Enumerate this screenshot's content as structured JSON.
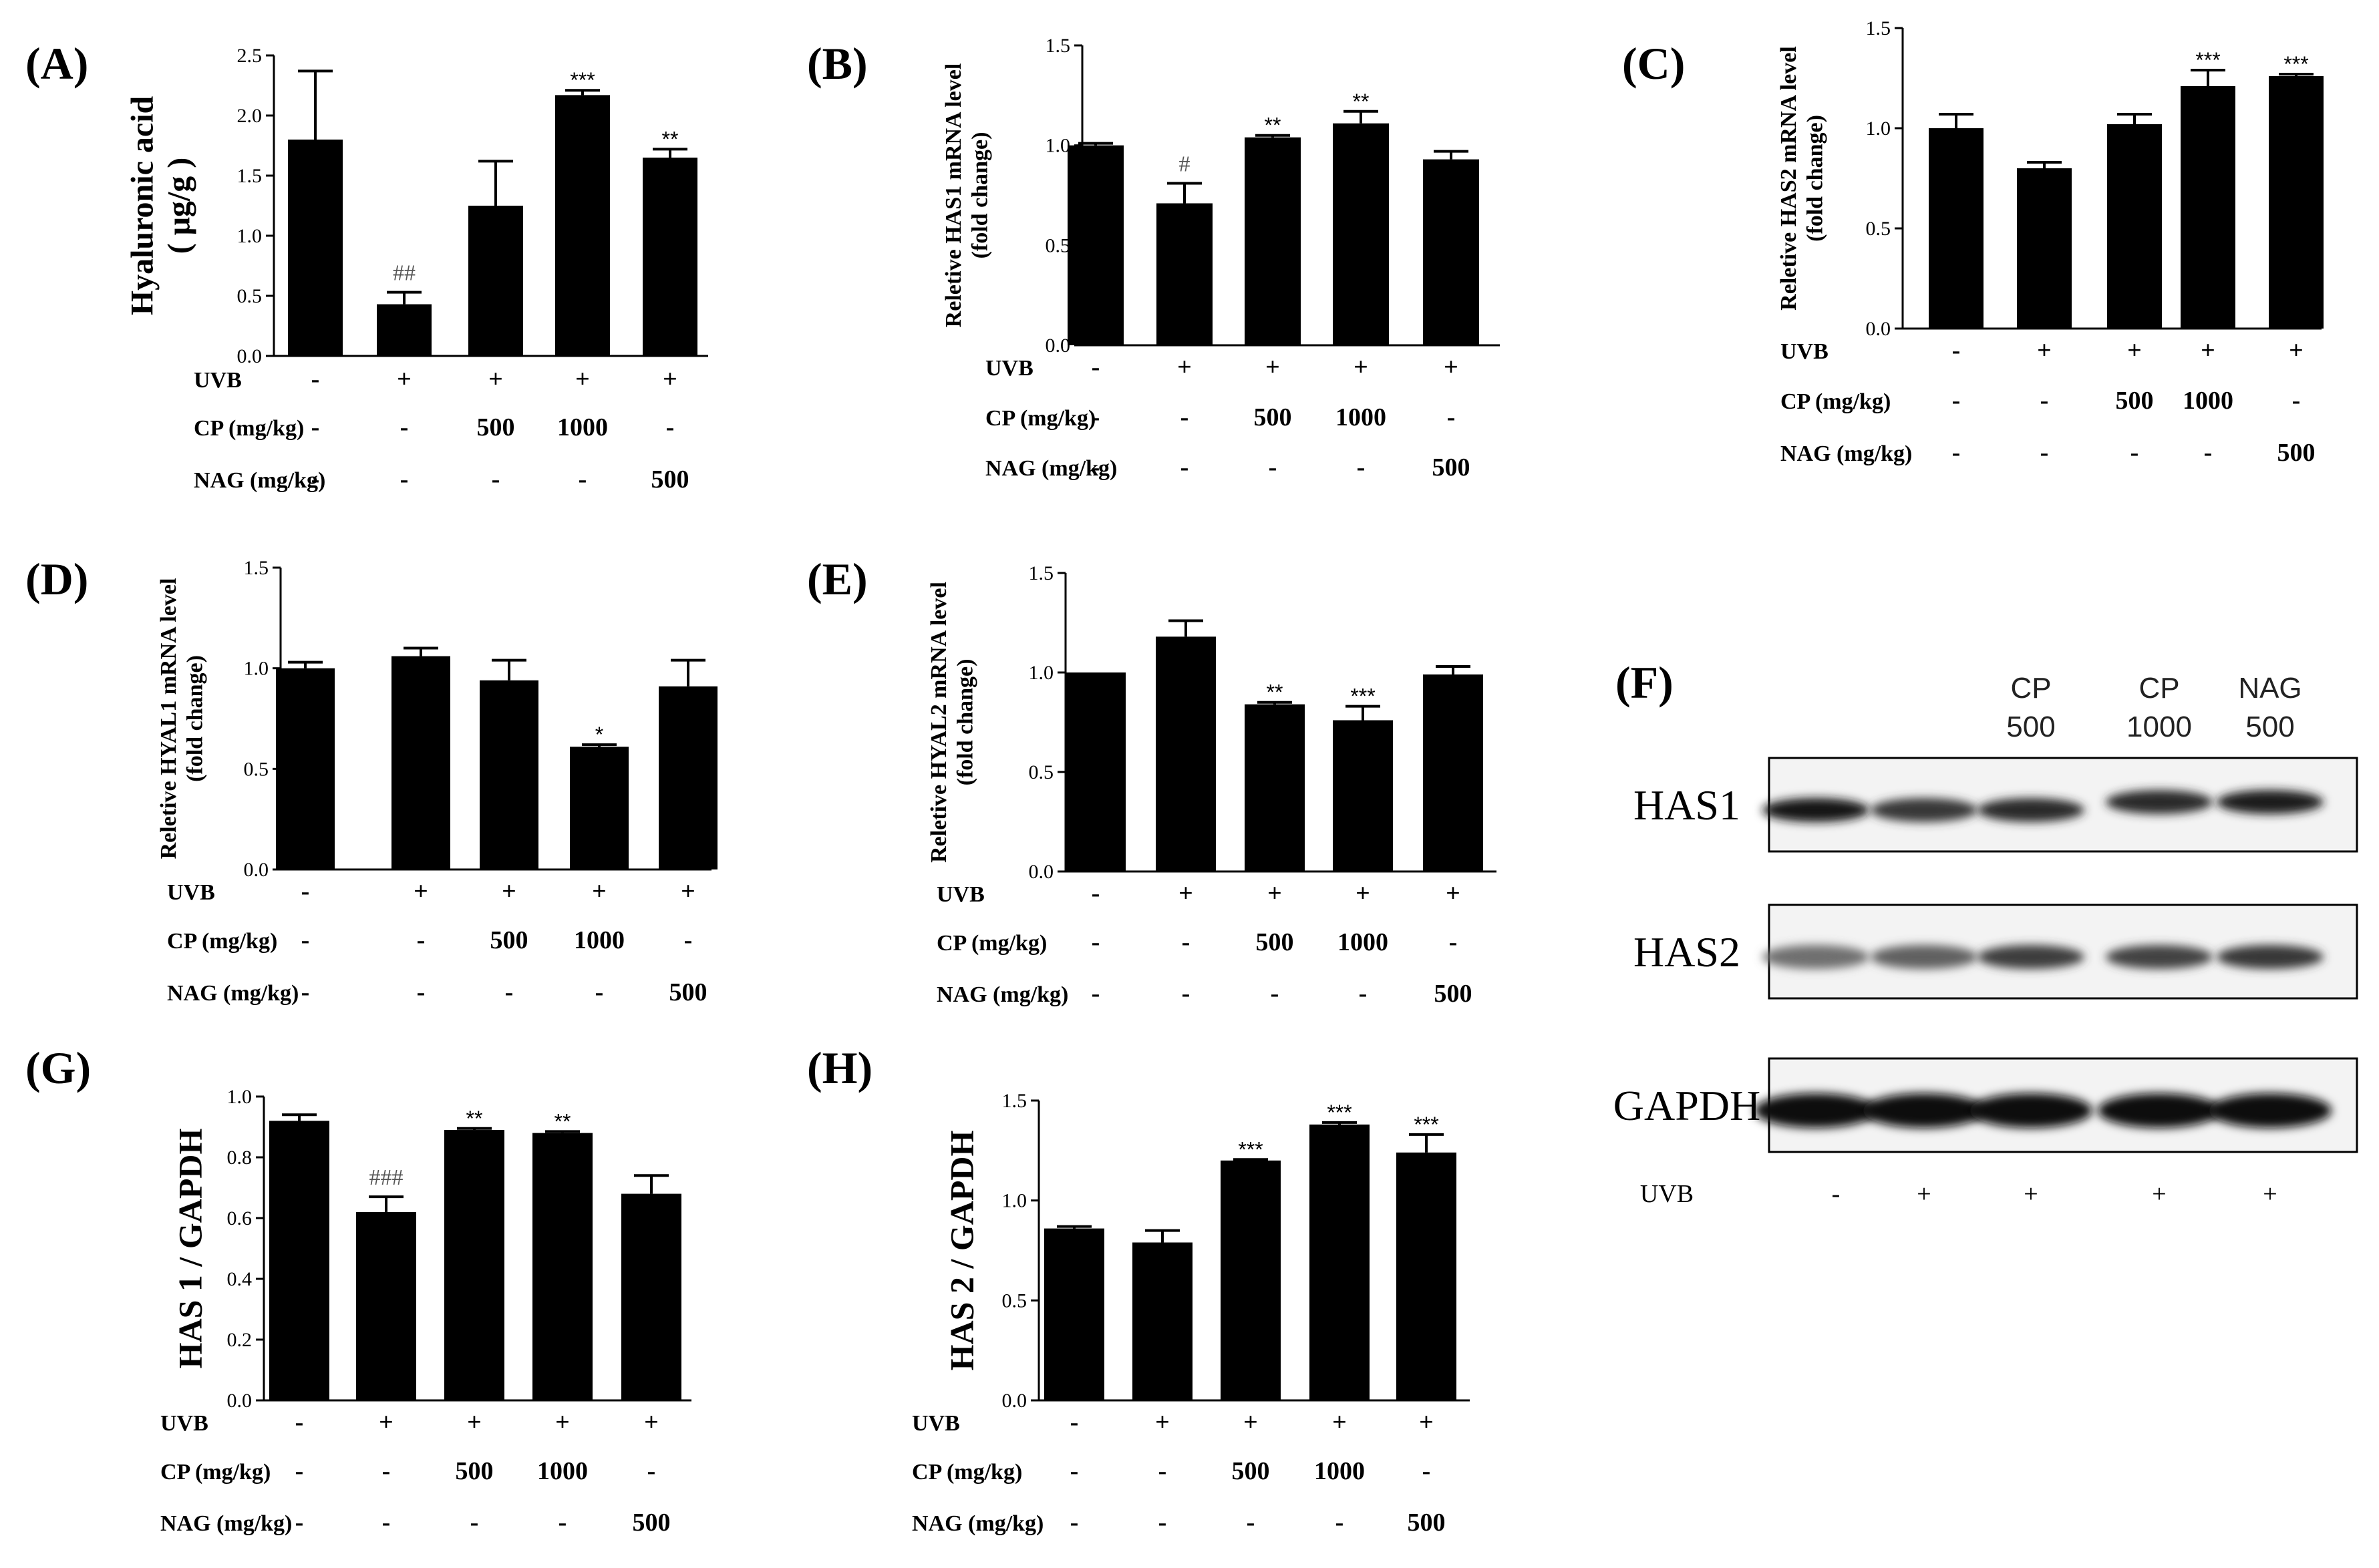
{
  "figure": {
    "conditions": {
      "uvb_label": "UVB",
      "cp_label": "CP (mg/kg)",
      "nag_label": "NAG (mg/kg)",
      "uvb": [
        "-",
        "+",
        "+",
        "+",
        "+"
      ],
      "cp": [
        "-",
        "-",
        "500",
        "1000",
        "-"
      ],
      "nag": [
        "-",
        "-",
        "-",
        "-",
        "500"
      ]
    },
    "blot": {
      "panel": "(F)",
      "headers": [
        {
          "line1": "",
          "line2": ""
        },
        {
          "line1": "",
          "line2": ""
        },
        {
          "line1": "CP",
          "line2": "500"
        },
        {
          "line1": "CP",
          "line2": "1000"
        },
        {
          "line1": "NAG",
          "line2": "500"
        }
      ],
      "rows": [
        "HAS1",
        "HAS2",
        "GAPDH"
      ],
      "uvb_label": "UVB",
      "uvb": [
        "-",
        "+",
        "+",
        "+",
        "+"
      ],
      "band_intensity": [
        [
          0.95,
          0.8,
          0.85,
          0.85,
          0.92
        ],
        [
          0.55,
          0.62,
          0.78,
          0.75,
          0.8
        ],
        [
          1.0,
          1.0,
          1.0,
          1.0,
          1.0
        ]
      ],
      "band_offset": [
        [
          0,
          0,
          0,
          -1,
          -1
        ],
        [
          0,
          0,
          0,
          0,
          0
        ],
        [
          0,
          0,
          0,
          0,
          0
        ]
      ]
    }
  },
  "chart_data": [
    {
      "panel": "(A)",
      "type": "bar",
      "ylabel_lines": [
        "Hyaluronic acid",
        "( μg/g )"
      ],
      "ylim": [
        0,
        2.5
      ],
      "yticks": [
        "0.0",
        "0.5",
        "1.0",
        "1.5",
        "2.0",
        "2.5"
      ],
      "values": [
        1.8,
        0.43,
        1.25,
        2.17,
        1.65
      ],
      "errors": [
        0.57,
        0.1,
        0.37,
        0.04,
        0.07
      ],
      "significance": [
        "",
        "##",
        "",
        "***",
        "**"
      ]
    },
    {
      "panel": "(B)",
      "type": "bar",
      "ylabel_lines": [
        "Reletive HAS1 mRNA level",
        "(fold change)"
      ],
      "ylim": [
        0,
        1.5
      ],
      "yticks": [
        "0.0",
        "0.5",
        "1.0",
        "1.5"
      ],
      "values": [
        1.0,
        0.71,
        1.04,
        1.11,
        0.93
      ],
      "errors": [
        0.01,
        0.1,
        0.01,
        0.06,
        0.04
      ],
      "significance": [
        "",
        "#",
        "**",
        "**",
        ""
      ]
    },
    {
      "panel": "(C)",
      "type": "bar",
      "ylabel_lines": [
        "Reletive HAS2 mRNA level",
        "(fold change)"
      ],
      "ylim": [
        0,
        1.5
      ],
      "yticks": [
        "0.0",
        "0.5",
        "1.0",
        "1.5"
      ],
      "values": [
        1.0,
        0.8,
        1.02,
        1.21,
        1.26
      ],
      "errors": [
        0.07,
        0.03,
        0.05,
        0.08,
        0.01
      ],
      "significance": [
        "",
        "",
        "",
        "***",
        "***"
      ]
    },
    {
      "panel": "(D)",
      "type": "bar",
      "ylabel_lines": [
        "Reletive HYAL1 mRNA level",
        "(fold change)"
      ],
      "ylim": [
        0,
        1.5
      ],
      "yticks": [
        "0.0",
        "0.5",
        "1.0",
        "1.5"
      ],
      "values": [
        1.0,
        1.06,
        0.94,
        0.61,
        0.91
      ],
      "errors": [
        0.03,
        0.04,
        0.1,
        0.01,
        0.13
      ],
      "significance": [
        "",
        "",
        "",
        "*",
        ""
      ]
    },
    {
      "panel": "(E)",
      "type": "bar",
      "ylabel_lines": [
        "Reletive HYAL2 mRNA level",
        "(fold change)"
      ],
      "ylim": [
        0,
        1.5
      ],
      "yticks": [
        "0.0",
        "0.5",
        "1.0",
        "1.5"
      ],
      "values": [
        1.0,
        1.18,
        0.84,
        0.76,
        0.99
      ],
      "errors": [
        0.0,
        0.08,
        0.01,
        0.07,
        0.04
      ],
      "significance": [
        "",
        "",
        "**",
        "***",
        ""
      ]
    },
    {
      "panel": "(G)",
      "type": "bar",
      "ylabel_lines": [
        "HAS 1 / GAPDH"
      ],
      "ylim": [
        0,
        1.0
      ],
      "yticks": [
        "0.0",
        "0.2",
        "0.4",
        "0.6",
        "0.8",
        "1.0"
      ],
      "values": [
        0.92,
        0.62,
        0.89,
        0.88,
        0.68
      ],
      "errors": [
        0.02,
        0.05,
        0.005,
        0.005,
        0.06
      ],
      "significance": [
        "",
        "###",
        "**",
        "**",
        ""
      ]
    },
    {
      "panel": "(H)",
      "type": "bar",
      "ylabel_lines": [
        "HAS 2 / GAPDH"
      ],
      "ylim": [
        0,
        1.5
      ],
      "yticks": [
        "0.0",
        "0.5",
        "1.0",
        "1.5"
      ],
      "values": [
        0.86,
        0.79,
        1.2,
        1.38,
        1.24
      ],
      "errors": [
        0.01,
        0.06,
        0.005,
        0.01,
        0.09
      ],
      "significance": [
        "",
        "",
        "***",
        "***",
        "***"
      ]
    }
  ]
}
